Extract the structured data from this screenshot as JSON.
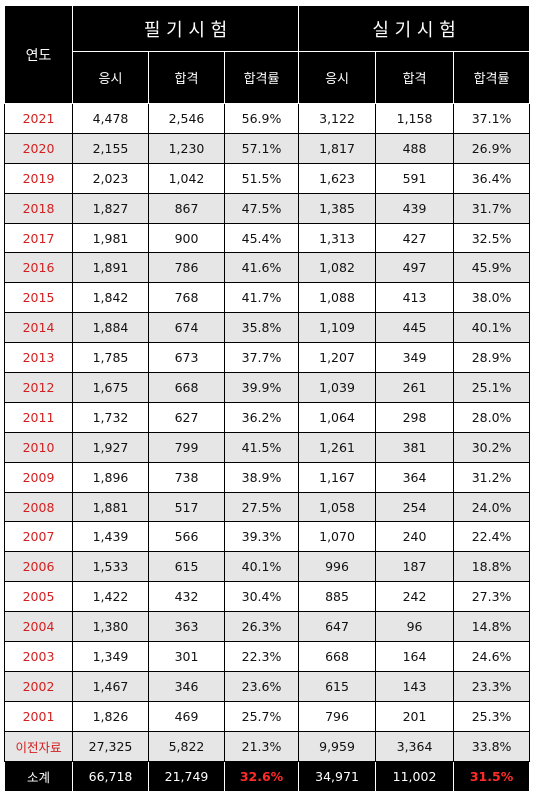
{
  "header": {
    "year_label": "연도",
    "written_exam": "필 기 시 험",
    "practical_exam": "실 기 시 험",
    "columns": [
      "응시",
      "합격",
      "합격률",
      "응시",
      "합격",
      "합격률"
    ]
  },
  "rows": [
    {
      "year": "2021",
      "w_apply": "4,478",
      "w_pass": "2,546",
      "w_rate": "56.9%",
      "p_apply": "3,122",
      "p_pass": "1,158",
      "p_rate": "37.1%"
    },
    {
      "year": "2020",
      "w_apply": "2,155",
      "w_pass": "1,230",
      "w_rate": "57.1%",
      "p_apply": "1,817",
      "p_pass": "488",
      "p_rate": "26.9%"
    },
    {
      "year": "2019",
      "w_apply": "2,023",
      "w_pass": "1,042",
      "w_rate": "51.5%",
      "p_apply": "1,623",
      "p_pass": "591",
      "p_rate": "36.4%"
    },
    {
      "year": "2018",
      "w_apply": "1,827",
      "w_pass": "867",
      "w_rate": "47.5%",
      "p_apply": "1,385",
      "p_pass": "439",
      "p_rate": "31.7%"
    },
    {
      "year": "2017",
      "w_apply": "1,981",
      "w_pass": "900",
      "w_rate": "45.4%",
      "p_apply": "1,313",
      "p_pass": "427",
      "p_rate": "32.5%"
    },
    {
      "year": "2016",
      "w_apply": "1,891",
      "w_pass": "786",
      "w_rate": "41.6%",
      "p_apply": "1,082",
      "p_pass": "497",
      "p_rate": "45.9%"
    },
    {
      "year": "2015",
      "w_apply": "1,842",
      "w_pass": "768",
      "w_rate": "41.7%",
      "p_apply": "1,088",
      "p_pass": "413",
      "p_rate": "38.0%"
    },
    {
      "year": "2014",
      "w_apply": "1,884",
      "w_pass": "674",
      "w_rate": "35.8%",
      "p_apply": "1,109",
      "p_pass": "445",
      "p_rate": "40.1%"
    },
    {
      "year": "2013",
      "w_apply": "1,785",
      "w_pass": "673",
      "w_rate": "37.7%",
      "p_apply": "1,207",
      "p_pass": "349",
      "p_rate": "28.9%"
    },
    {
      "year": "2012",
      "w_apply": "1,675",
      "w_pass": "668",
      "w_rate": "39.9%",
      "p_apply": "1,039",
      "p_pass": "261",
      "p_rate": "25.1%"
    },
    {
      "year": "2011",
      "w_apply": "1,732",
      "w_pass": "627",
      "w_rate": "36.2%",
      "p_apply": "1,064",
      "p_pass": "298",
      "p_rate": "28.0%"
    },
    {
      "year": "2010",
      "w_apply": "1,927",
      "w_pass": "799",
      "w_rate": "41.5%",
      "p_apply": "1,261",
      "p_pass": "381",
      "p_rate": "30.2%"
    },
    {
      "year": "2009",
      "w_apply": "1,896",
      "w_pass": "738",
      "w_rate": "38.9%",
      "p_apply": "1,167",
      "p_pass": "364",
      "p_rate": "31.2%"
    },
    {
      "year": "2008",
      "w_apply": "1,881",
      "w_pass": "517",
      "w_rate": "27.5%",
      "p_apply": "1,058",
      "p_pass": "254",
      "p_rate": "24.0%"
    },
    {
      "year": "2007",
      "w_apply": "1,439",
      "w_pass": "566",
      "w_rate": "39.3%",
      "p_apply": "1,070",
      "p_pass": "240",
      "p_rate": "22.4%"
    },
    {
      "year": "2006",
      "w_apply": "1,533",
      "w_pass": "615",
      "w_rate": "40.1%",
      "p_apply": "996",
      "p_pass": "187",
      "p_rate": "18.8%"
    },
    {
      "year": "2005",
      "w_apply": "1,422",
      "w_pass": "432",
      "w_rate": "30.4%",
      "p_apply": "885",
      "p_pass": "242",
      "p_rate": "27.3%"
    },
    {
      "year": "2004",
      "w_apply": "1,380",
      "w_pass": "363",
      "w_rate": "26.3%",
      "p_apply": "647",
      "p_pass": "96",
      "p_rate": "14.8%"
    },
    {
      "year": "2003",
      "w_apply": "1,349",
      "w_pass": "301",
      "w_rate": "22.3%",
      "p_apply": "668",
      "p_pass": "164",
      "p_rate": "24.6%"
    },
    {
      "year": "2002",
      "w_apply": "1,467",
      "w_pass": "346",
      "w_rate": "23.6%",
      "p_apply": "615",
      "p_pass": "143",
      "p_rate": "23.3%"
    },
    {
      "year": "2001",
      "w_apply": "1,826",
      "w_pass": "469",
      "w_rate": "25.7%",
      "p_apply": "796",
      "p_pass": "201",
      "p_rate": "25.3%"
    },
    {
      "year": "이전자료",
      "w_apply": "27,325",
      "w_pass": "5,822",
      "w_rate": "21.3%",
      "p_apply": "9,959",
      "p_pass": "3,364",
      "p_rate": "33.8%"
    }
  ],
  "total": {
    "label": "소계",
    "w_apply": "66,718",
    "w_pass": "21,749",
    "w_rate": "32.6%",
    "p_apply": "34,971",
    "p_pass": "11,002",
    "p_rate": "31.5%"
  },
  "colors": {
    "header_bg": "#000000",
    "header_text": "#ffffff",
    "year_text": "#d21f1f",
    "alt_row_bg": "#e6e6e6",
    "total_rate_text": "#ff2a2a"
  }
}
